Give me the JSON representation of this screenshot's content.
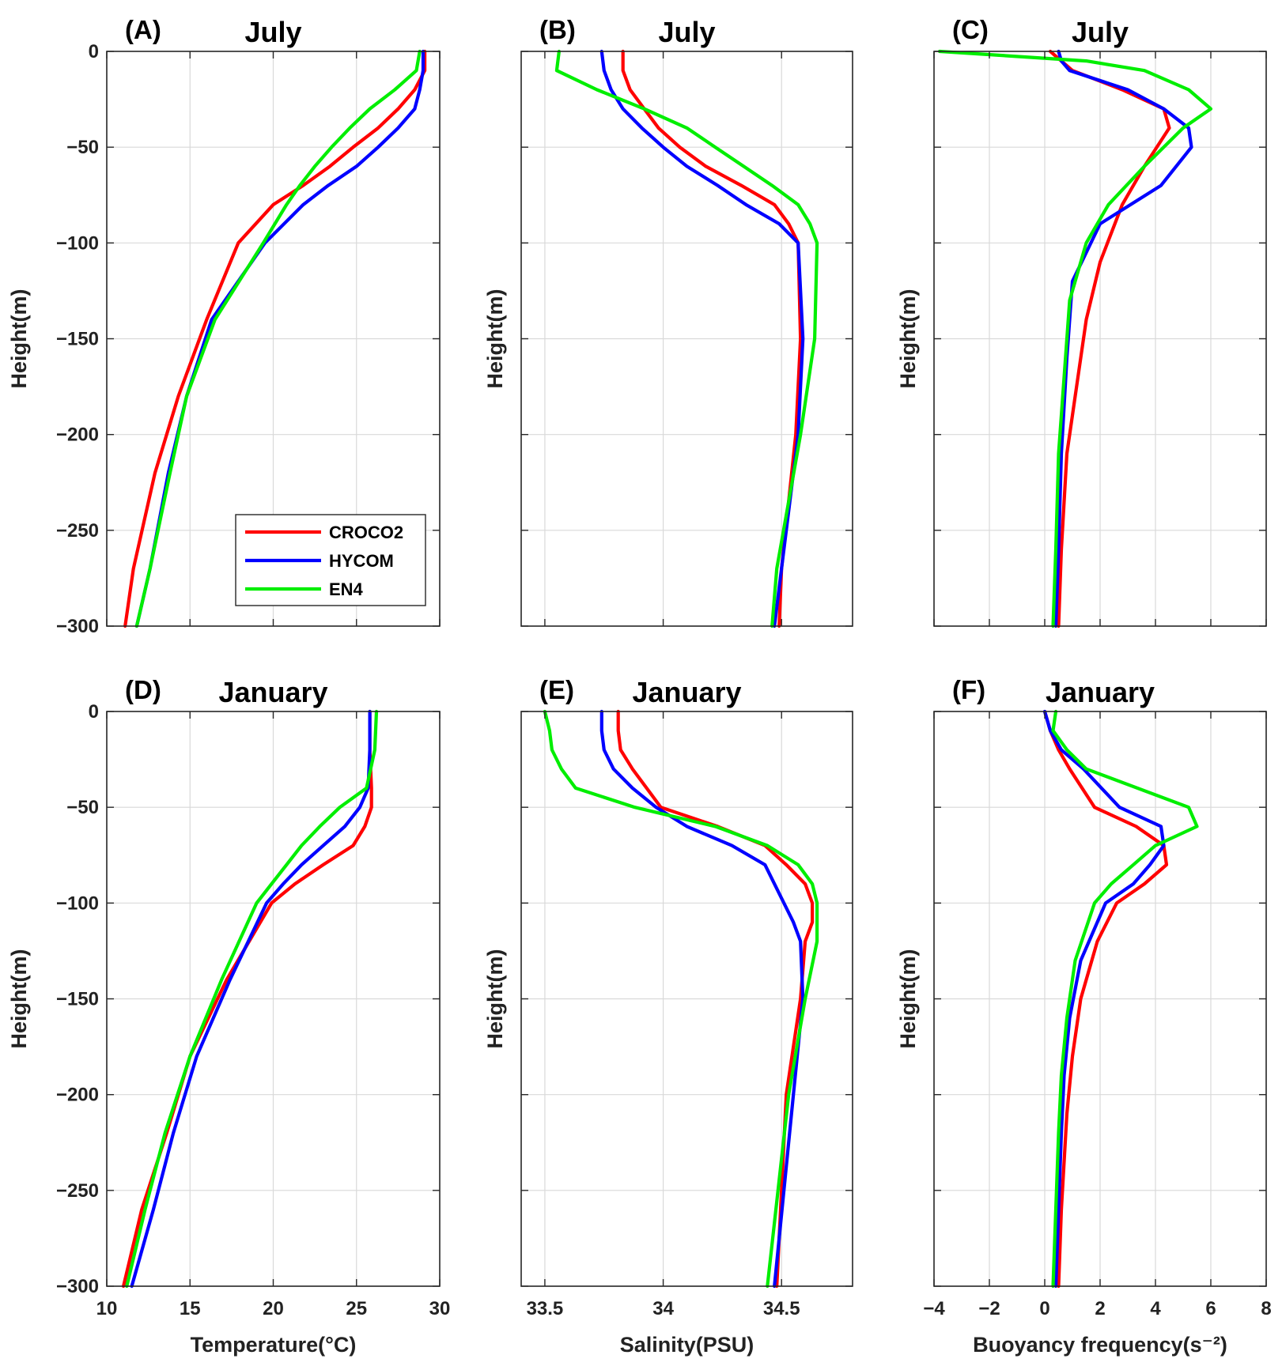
{
  "colors": {
    "CROCO2": "#ff0000",
    "HYCOM": "#0000ff",
    "EN4": "#00ee00",
    "grid": "#d9d9d9",
    "axis": "#262626"
  },
  "legend": [
    "CROCO2",
    "HYCOM",
    "EN4"
  ],
  "chart_data": [
    {
      "type": "line",
      "panel": "(A)",
      "title": "July",
      "xlabel": "",
      "ylabel": "Height(m)",
      "xlim": [
        10,
        30
      ],
      "ylim": [
        -300,
        0
      ],
      "xticks": [
        "",
        "",
        "",
        "",
        ""
      ],
      "yticks": [
        "0",
        "−50",
        "−100",
        "−150",
        "−200",
        "−250",
        "−300"
      ],
      "series": [
        {
          "name": "CROCO2",
          "x": [
            29.1,
            29.1,
            28.5,
            27.5,
            26.3,
            24.8,
            23.4,
            21.8,
            20.0,
            17.9,
            16.0,
            14.3,
            12.9,
            11.6,
            11.1
          ],
          "y": [
            0,
            -10,
            -20,
            -30,
            -40,
            -50,
            -60,
            -70,
            -80,
            -100,
            -140,
            -180,
            -220,
            -270,
            -300
          ]
        },
        {
          "name": "HYCOM",
          "x": [
            29.0,
            29.0,
            28.8,
            28.5,
            27.5,
            26.3,
            25.0,
            23.3,
            21.8,
            19.5,
            16.3,
            14.8,
            13.7,
            12.6,
            11.8
          ],
          "y": [
            0,
            -10,
            -20,
            -30,
            -40,
            -50,
            -60,
            -70,
            -80,
            -100,
            -140,
            -180,
            -220,
            -270,
            -300
          ]
        },
        {
          "name": "EN4",
          "x": [
            28.8,
            28.6,
            27.3,
            25.8,
            24.6,
            23.5,
            22.5,
            21.6,
            20.8,
            19.4,
            16.5,
            14.8,
            13.8,
            12.6,
            11.8
          ],
          "y": [
            0,
            -10,
            -20,
            -30,
            -40,
            -50,
            -60,
            -70,
            -80,
            -100,
            -140,
            -180,
            -220,
            -270,
            -300
          ]
        }
      ]
    },
    {
      "type": "line",
      "panel": "(B)",
      "title": "July",
      "xlabel": "",
      "ylabel": "Height(m)",
      "xlim": [
        33.4,
        34.8
      ],
      "ylim": [
        -300,
        0
      ],
      "xticks": [
        "",
        "",
        "",
        ""
      ],
      "yticks": [
        "",
        "",
        "",
        "",
        "",
        "",
        ""
      ],
      "series": [
        {
          "name": "CROCO2",
          "x": [
            33.83,
            33.83,
            33.86,
            33.92,
            33.98,
            34.07,
            34.18,
            34.33,
            34.47,
            34.53,
            34.57,
            34.58,
            34.56,
            34.5,
            34.49
          ],
          "y": [
            0,
            -10,
            -20,
            -30,
            -40,
            -50,
            -60,
            -70,
            -80,
            -90,
            -100,
            -150,
            -200,
            -270,
            -300
          ]
        },
        {
          "name": "HYCOM",
          "x": [
            33.74,
            33.75,
            33.78,
            33.83,
            33.91,
            34.0,
            34.1,
            34.23,
            34.35,
            34.49,
            34.57,
            34.59,
            34.57,
            34.5,
            34.47
          ],
          "y": [
            0,
            -10,
            -20,
            -30,
            -40,
            -50,
            -60,
            -70,
            -80,
            -90,
            -100,
            -150,
            -200,
            -270,
            -300
          ]
        },
        {
          "name": "EN4",
          "x": [
            33.56,
            33.55,
            33.72,
            33.92,
            34.1,
            34.22,
            34.34,
            34.46,
            34.57,
            34.62,
            34.65,
            34.64,
            34.58,
            34.48,
            34.46
          ],
          "y": [
            0,
            -10,
            -20,
            -30,
            -40,
            -50,
            -60,
            -70,
            -80,
            -90,
            -100,
            -150,
            -200,
            -270,
            -300
          ]
        }
      ]
    },
    {
      "type": "line",
      "panel": "(C)",
      "title": "July",
      "xlabel": "",
      "ylabel": "Height(m)",
      "xlim": [
        -4,
        8
      ],
      "ylim": [
        -300,
        0
      ],
      "xticks": [
        "",
        "",
        "",
        "",
        "",
        "",
        ""
      ],
      "yticks": [
        "",
        "",
        "",
        "",
        "",
        "",
        ""
      ],
      "series": [
        {
          "name": "CROCO2",
          "x": [
            0.2,
            0.6,
            1.0,
            2.8,
            4.3,
            4.5,
            3.6,
            2.8,
            2.0,
            1.5,
            1.2,
            0.8,
            0.6,
            0.5
          ],
          "y": [
            0,
            -5,
            -10,
            -20,
            -30,
            -40,
            -60,
            -80,
            -110,
            -140,
            -170,
            -210,
            -260,
            -300
          ]
        },
        {
          "name": "HYCOM",
          "x": [
            0.5,
            0.6,
            0.9,
            3.0,
            4.3,
            5.2,
            5.3,
            4.2,
            2.0,
            1.0,
            0.8,
            0.6,
            0.5,
            0.4
          ],
          "y": [
            0,
            -5,
            -10,
            -20,
            -30,
            -40,
            -50,
            -70,
            -90,
            -120,
            -160,
            -210,
            -260,
            -300
          ]
        },
        {
          "name": "EN4",
          "x": [
            -3.8,
            1.5,
            3.6,
            5.2,
            6.0,
            5.0,
            3.6,
            2.3,
            1.5,
            0.9,
            0.7,
            0.5,
            0.4,
            0.3
          ],
          "y": [
            0,
            -5,
            -10,
            -20,
            -30,
            -40,
            -60,
            -80,
            -100,
            -130,
            -170,
            -210,
            -260,
            -300
          ]
        }
      ]
    },
    {
      "type": "line",
      "panel": "(D)",
      "title": "January",
      "xlabel": "Temperature(°C)",
      "ylabel": "Height(m)",
      "xlim": [
        10,
        30
      ],
      "ylim": [
        -300,
        0
      ],
      "xticks": [
        "10",
        "15",
        "20",
        "25",
        "30"
      ],
      "yticks": [
        "0",
        "−50",
        "−100",
        "−150",
        "−200",
        "−250",
        "−300"
      ],
      "series": [
        {
          "name": "CROCO2",
          "x": [
            25.8,
            25.8,
            25.9,
            25.9,
            25.5,
            24.8,
            23.0,
            21.3,
            19.9,
            17.2,
            15.0,
            13.6,
            12.1,
            11.0
          ],
          "y": [
            0,
            -20,
            -40,
            -50,
            -60,
            -70,
            -80,
            -90,
            -100,
            -140,
            -180,
            -220,
            -260,
            -300
          ]
        },
        {
          "name": "HYCOM",
          "x": [
            25.8,
            25.8,
            25.7,
            25.2,
            24.3,
            23.0,
            21.7,
            20.6,
            19.6,
            17.4,
            15.4,
            14.0,
            12.8,
            11.5
          ],
          "y": [
            0,
            -20,
            -40,
            -50,
            -60,
            -70,
            -80,
            -90,
            -100,
            -140,
            -180,
            -220,
            -260,
            -300
          ]
        },
        {
          "name": "EN4",
          "x": [
            26.2,
            26.1,
            25.6,
            24.0,
            22.8,
            21.7,
            20.8,
            19.9,
            19.0,
            16.9,
            15.0,
            13.5,
            12.3,
            11.2
          ],
          "y": [
            0,
            -20,
            -40,
            -50,
            -60,
            -70,
            -80,
            -90,
            -100,
            -140,
            -180,
            -220,
            -260,
            -300
          ]
        }
      ]
    },
    {
      "type": "line",
      "panel": "(E)",
      "title": "January",
      "xlabel": "Salinity(PSU)",
      "ylabel": "Height(m)",
      "xlim": [
        33.4,
        34.8
      ],
      "ylim": [
        -300,
        0
      ],
      "xticks": [
        "33.5",
        "34",
        "34.5",
        ""
      ],
      "yticks": [
        "",
        "",
        "",
        "",
        "",
        "",
        ""
      ],
      "series": [
        {
          "name": "CROCO2",
          "x": [
            33.81,
            33.81,
            33.82,
            33.87,
            33.93,
            33.99,
            34.23,
            34.43,
            34.52,
            34.6,
            34.63,
            34.63,
            34.6,
            34.58,
            34.52,
            34.48
          ],
          "y": [
            0,
            -10,
            -20,
            -30,
            -40,
            -50,
            -60,
            -70,
            -80,
            -90,
            -100,
            -110,
            -120,
            -150,
            -200,
            -300
          ]
        },
        {
          "name": "HYCOM",
          "x": [
            33.74,
            33.74,
            33.75,
            33.79,
            33.87,
            33.97,
            34.1,
            34.29,
            34.43,
            34.47,
            34.51,
            34.55,
            34.58,
            34.59,
            34.55,
            34.47
          ],
          "y": [
            0,
            -10,
            -20,
            -30,
            -40,
            -50,
            -60,
            -70,
            -80,
            -90,
            -100,
            -110,
            -120,
            -150,
            -200,
            -300
          ]
        },
        {
          "name": "EN4",
          "x": [
            33.5,
            33.52,
            33.53,
            33.57,
            33.63,
            33.88,
            34.22,
            34.44,
            34.57,
            34.63,
            34.65,
            34.65,
            34.65,
            34.6,
            34.53,
            34.44
          ],
          "y": [
            0,
            -10,
            -20,
            -30,
            -40,
            -50,
            -60,
            -70,
            -80,
            -90,
            -100,
            -110,
            -120,
            -150,
            -200,
            -300
          ]
        }
      ]
    },
    {
      "type": "line",
      "panel": "(F)",
      "title": "January",
      "xlabel": "Buoyancy frequency(s⁻²)",
      "ylabel": "Height(m)",
      "xlim": [
        -4,
        8
      ],
      "ylim": [
        -300,
        0
      ],
      "xticks": [
        "−4",
        "−2",
        "0",
        "2",
        "4",
        "6",
        "8"
      ],
      "yticks": [
        "",
        "",
        "",
        "",
        "",
        "",
        ""
      ],
      "series": [
        {
          "name": "CROCO2",
          "x": [
            0.0,
            0.2,
            0.5,
            0.9,
            1.8,
            3.3,
            4.3,
            4.4,
            3.6,
            2.6,
            1.9,
            1.3,
            1.0,
            0.8,
            0.6,
            0.5
          ],
          "y": [
            0,
            -10,
            -20,
            -30,
            -50,
            -60,
            -70,
            -80,
            -90,
            -100,
            -120,
            -150,
            -180,
            -210,
            -260,
            -300
          ]
        },
        {
          "name": "HYCOM",
          "x": [
            0.0,
            0.2,
            0.6,
            1.4,
            2.7,
            4.2,
            4.3,
            3.8,
            3.2,
            2.2,
            1.3,
            0.9,
            0.7,
            0.6,
            0.5,
            0.4
          ],
          "y": [
            0,
            -10,
            -20,
            -30,
            -50,
            -60,
            -70,
            -80,
            -90,
            -100,
            -130,
            -160,
            -190,
            -220,
            -260,
            -300
          ]
        },
        {
          "name": "EN4",
          "x": [
            0.4,
            0.3,
            0.8,
            1.5,
            5.2,
            5.5,
            4.0,
            3.2,
            2.4,
            1.8,
            1.1,
            0.8,
            0.6,
            0.5,
            0.4,
            0.3
          ],
          "y": [
            0,
            -10,
            -20,
            -30,
            -50,
            -60,
            -70,
            -80,
            -90,
            -100,
            -130,
            -160,
            -190,
            -220,
            -260,
            -300
          ]
        }
      ]
    }
  ]
}
